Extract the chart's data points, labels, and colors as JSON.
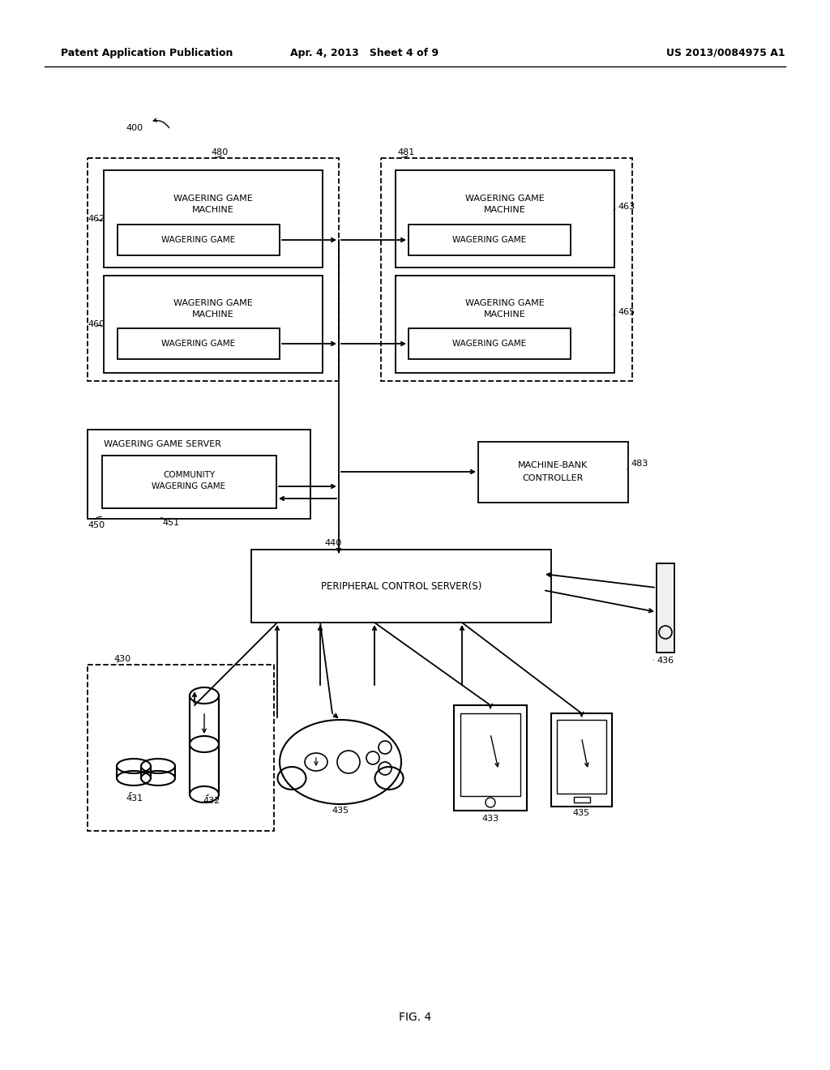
{
  "bg_color": "#ffffff",
  "header_left": "Patent Application Publication",
  "header_center": "Apr. 4, 2013   Sheet 4 of 9",
  "header_right": "US 2013/0084975 A1",
  "footer_label": "FIG. 4"
}
